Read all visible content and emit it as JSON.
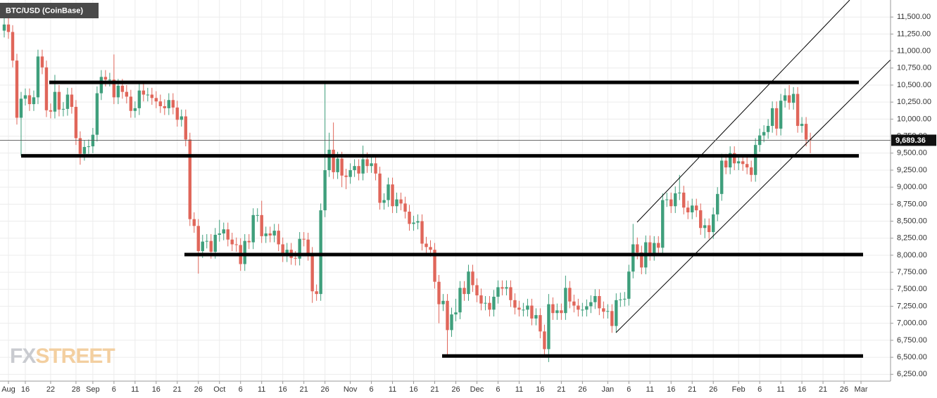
{
  "chart_data": {
    "type": "candlestick",
    "title": "BTC/USD (CoinBase)",
    "open": [
      11300,
      11390,
      11280,
      10860,
      10020,
      10300,
      10350,
      10220,
      10320,
      10920,
      10760,
      10130,
      10110,
      10400,
      10140,
      10150,
      10360,
      10180,
      9720,
      9490,
      9590,
      9600,
      9770,
      10380,
      10620,
      10580,
      10580,
      10320,
      10490,
      10400,
      10330,
      10120,
      10160,
      10420,
      10360,
      10360,
      10310,
      10260,
      10190,
      10160,
      10280,
      10170,
      9990,
      10040,
      9700,
      8530,
      8430,
      8060,
      8200,
      8210,
      8050,
      8300,
      8320,
      8380,
      8230,
      8160,
      8150,
      7870,
      8210,
      8190,
      8590,
      8590,
      8280,
      8320,
      8290,
      8360,
      8160,
      8000,
      8080,
      7960,
      7950,
      8240,
      8230,
      8020,
      7470,
      7430,
      8660,
      9250,
      9550,
      9220,
      9420,
      9170,
      9150,
      9250,
      9310,
      9200,
      9410,
      9310,
      9350,
      9200,
      8770,
      8810,
      9040,
      8720,
      8820,
      8760,
      8640,
      8460,
      8480,
      8500,
      8170,
      8120,
      8080,
      7610,
      7280,
      7330,
      6900,
      7130,
      7160,
      7520,
      7430,
      7760,
      7560,
      7410,
      7290,
      7300,
      7200,
      7390,
      7530,
      7510,
      7530,
      7340,
      7230,
      7200,
      7200,
      7260,
      7070,
      7120,
      6880,
      6620,
      7280,
      7150,
      7190,
      7150,
      7520,
      7320,
      7260,
      7200,
      7200,
      7250,
      7310,
      7400,
      7220,
      7170,
      7180,
      6960,
      7340,
      7350,
      7360,
      7760,
      8160,
      8040,
      7820,
      8190,
      8020,
      8180,
      8110,
      8810,
      8820,
      8720,
      8910,
      8920,
      8700,
      8630,
      8730,
      8660,
      8400,
      8440,
      8340,
      8600,
      8900,
      9390,
      9290,
      9500,
      9350,
      9380,
      9340,
      9290,
      9180,
      9620,
      9760,
      9810,
      9900,
      10160,
      9860,
      10270,
      10350,
      10240,
      10370,
      9900,
      9930,
      9700
    ],
    "high": [
      11600,
      11490,
      11380,
      10960,
      10400,
      10450,
      10450,
      10420,
      11020,
      11020,
      10860,
      10230,
      10650,
      10500,
      10250,
      10460,
      10460,
      10280,
      9820,
      9690,
      9700,
      9870,
      10480,
      10720,
      10720,
      10680,
      10950,
      10590,
      10590,
      10500,
      10430,
      10260,
      10520,
      10520,
      10460,
      10460,
      10410,
      10360,
      10290,
      10380,
      10380,
      10270,
      10140,
      10140,
      9800,
      8630,
      8530,
      8300,
      8310,
      8310,
      8400,
      8520,
      8480,
      8480,
      8330,
      8260,
      8250,
      8310,
      8310,
      8690,
      8690,
      8800,
      8420,
      8420,
      8460,
      8460,
      8260,
      8180,
      8180,
      8060,
      8340,
      8340,
      8330,
      8120,
      7570,
      8760,
      10540,
      9800,
      9950,
      9520,
      9520,
      9270,
      9350,
      9410,
      9410,
      9610,
      9510,
      9450,
      9450,
      9300,
      8910,
      9140,
      9140,
      8920,
      8920,
      8860,
      8740,
      8580,
      8600,
      8600,
      8270,
      8220,
      8180,
      7710,
      7430,
      7430,
      7230,
      7360,
      7620,
      7620,
      7860,
      7860,
      7660,
      7510,
      7400,
      7400,
      7490,
      7630,
      7630,
      7630,
      7630,
      7440,
      7330,
      7300,
      7360,
      7360,
      7220,
      7220,
      6980,
      7430,
      7380,
      7290,
      7290,
      7700,
      7620,
      7420,
      7360,
      7300,
      7350,
      7410,
      7500,
      7500,
      7320,
      7280,
      7280,
      7440,
      7450,
      7460,
      7860,
      8460,
      8260,
      8140,
      8290,
      8290,
      8280,
      8280,
      8910,
      8920,
      8920,
      9010,
      9180,
      9020,
      8800,
      8830,
      8830,
      8760,
      8540,
      8540,
      8700,
      9000,
      9490,
      9490,
      9600,
      9600,
      9480,
      9480,
      9440,
      9390,
      9720,
      9860,
      9910,
      10000,
      10260,
      10260,
      10370,
      10450,
      10500,
      10470,
      10470,
      10030,
      10030,
      9800
    ],
    "low": [
      11200,
      11180,
      10760,
      9920,
      9460,
      10200,
      10120,
      10120,
      10220,
      10660,
      10030,
      10010,
      10010,
      10040,
      10040,
      10050,
      10080,
      9620,
      9330,
      9390,
      9490,
      9500,
      9670,
      10280,
      10480,
      10480,
      10220,
      10220,
      10300,
      10230,
      10020,
      10020,
      10060,
      10260,
      10260,
      10210,
      10160,
      10090,
      10060,
      10060,
      10070,
      9890,
      9890,
      9600,
      8430,
      8330,
      7730,
      7960,
      8100,
      7950,
      7950,
      8200,
      8220,
      8130,
      8060,
      8050,
      7770,
      7770,
      8090,
      8090,
      8490,
      8180,
      8180,
      8190,
      8190,
      8060,
      7900,
      7900,
      7860,
      7850,
      7850,
      8130,
      7920,
      7300,
      7330,
      7330,
      8560,
      9150,
      9120,
      9120,
      9000,
      8970,
      9050,
      9150,
      9100,
      9100,
      9210,
      9210,
      9100,
      8670,
      8670,
      8710,
      8620,
      8620,
      8660,
      8540,
      8360,
      8360,
      8380,
      8070,
      8020,
      7980,
      7510,
      7000,
      7180,
      6520,
      6800,
      7030,
      7060,
      7330,
      7330,
      7460,
      7310,
      7190,
      7190,
      7100,
      7100,
      7290,
      7410,
      7410,
      7240,
      7130,
      7100,
      7100,
      7100,
      6970,
      6970,
      6780,
      6520,
      6430,
      7050,
      7050,
      7050,
      7050,
      7220,
      7160,
      7100,
      7100,
      7100,
      7150,
      7210,
      7120,
      7070,
      7070,
      6860,
      6860,
      7240,
      7250,
      7260,
      7660,
      7940,
      7720,
      7720,
      7920,
      7920,
      8010,
      8010,
      8710,
      8620,
      8620,
      8810,
      8600,
      8530,
      8530,
      8560,
      8300,
      8250,
      8240,
      8240,
      8500,
      8800,
      9190,
      9190,
      9250,
      9250,
      9240,
      9190,
      9080,
      9080,
      9520,
      9660,
      9710,
      9800,
      9760,
      9760,
      10170,
      10140,
      10140,
      9800,
      9800,
      9600,
      9500
    ],
    "close": [
      11390,
      11280,
      10860,
      10020,
      10300,
      10350,
      10220,
      10320,
      10920,
      10760,
      10130,
      10110,
      10400,
      10140,
      10150,
      10360,
      10180,
      9720,
      9490,
      9590,
      9600,
      9770,
      10380,
      10620,
      10580,
      10580,
      10320,
      10490,
      10400,
      10330,
      10120,
      10160,
      10420,
      10360,
      10360,
      10310,
      10260,
      10190,
      10160,
      10280,
      10170,
      9990,
      10040,
      9700,
      8530,
      8430,
      8060,
      8200,
      8210,
      8050,
      8300,
      8320,
      8380,
      8230,
      8160,
      8150,
      7870,
      8210,
      8190,
      8590,
      8590,
      8280,
      8320,
      8290,
      8360,
      8160,
      8000,
      8080,
      7960,
      7950,
      8240,
      8230,
      8020,
      7470,
      7430,
      8660,
      9250,
      9550,
      9220,
      9420,
      9170,
      9150,
      9250,
      9310,
      9200,
      9410,
      9310,
      9350,
      9200,
      8770,
      8810,
      9040,
      8720,
      8820,
      8760,
      8640,
      8460,
      8480,
      8500,
      8170,
      8120,
      8080,
      7610,
      7280,
      7330,
      6900,
      7130,
      7160,
      7520,
      7430,
      7760,
      7560,
      7410,
      7290,
      7300,
      7200,
      7390,
      7530,
      7510,
      7530,
      7340,
      7230,
      7200,
      7200,
      7260,
      7070,
      7120,
      6880,
      6620,
      7280,
      7150,
      7190,
      7150,
      7520,
      7320,
      7260,
      7200,
      7200,
      7250,
      7310,
      7400,
      7220,
      7170,
      7180,
      6960,
      7340,
      7350,
      7360,
      7760,
      8160,
      8040,
      7820,
      8190,
      8020,
      8180,
      8110,
      8810,
      8820,
      8720,
      8910,
      8920,
      8700,
      8630,
      8730,
      8660,
      8400,
      8440,
      8340,
      8600,
      8900,
      9390,
      9290,
      9500,
      9350,
      9380,
      9340,
      9290,
      9180,
      9620,
      9760,
      9810,
      9900,
      10160,
      9860,
      10270,
      10350,
      10240,
      10370,
      9900,
      9930,
      9700,
      9690
    ],
    "up_color": "#3f9f7c",
    "down_color": "#e0665a",
    "xlim": [
      -1,
      210
    ],
    "xticks": [
      {
        "value": 1,
        "label": "Aug"
      },
      {
        "value": 5,
        "label": "16"
      },
      {
        "value": 11,
        "label": "22"
      },
      {
        "value": 17,
        "label": "28"
      },
      {
        "value": 21,
        "label": "Sep"
      },
      {
        "value": 26,
        "label": "6"
      },
      {
        "value": 31,
        "label": "11"
      },
      {
        "value": 36,
        "label": "16"
      },
      {
        "value": 41,
        "label": "21"
      },
      {
        "value": 46,
        "label": "26"
      },
      {
        "value": 51,
        "label": "Oct"
      },
      {
        "value": 56,
        "label": "6"
      },
      {
        "value": 61,
        "label": "11"
      },
      {
        "value": 66,
        "label": "16"
      },
      {
        "value": 71,
        "label": "21"
      },
      {
        "value": 76,
        "label": "26"
      },
      {
        "value": 82,
        "label": "Nov"
      },
      {
        "value": 87,
        "label": "6"
      },
      {
        "value": 92,
        "label": "11"
      },
      {
        "value": 97,
        "label": "16"
      },
      {
        "value": 102,
        "label": "21"
      },
      {
        "value": 107,
        "label": "26"
      },
      {
        "value": 112,
        "label": "Dec"
      },
      {
        "value": 117,
        "label": "6"
      },
      {
        "value": 122,
        "label": "11"
      },
      {
        "value": 127,
        "label": "16"
      },
      {
        "value": 132,
        "label": "21"
      },
      {
        "value": 137,
        "label": "26"
      },
      {
        "value": 143,
        "label": "Jan"
      },
      {
        "value": 148,
        "label": "6"
      },
      {
        "value": 153,
        "label": "11"
      },
      {
        "value": 158,
        "label": "16"
      },
      {
        "value": 163,
        "label": "21"
      },
      {
        "value": 168,
        "label": "26"
      },
      {
        "value": 174,
        "label": "Feb"
      },
      {
        "value": 179,
        "label": "6"
      },
      {
        "value": 184,
        "label": "11"
      },
      {
        "value": 189,
        "label": "16"
      },
      {
        "value": 194,
        "label": "21"
      },
      {
        "value": 199,
        "label": "26"
      },
      {
        "value": 203,
        "label": "Mar"
      }
    ],
    "ylim": [
      6150,
      11750
    ],
    "yticks": [
      {
        "value": 6250,
        "label": "6,250.00"
      },
      {
        "value": 6500,
        "label": "6,500.00"
      },
      {
        "value": 6750,
        "label": "6,750.00"
      },
      {
        "value": 7000,
        "label": "7,000.00"
      },
      {
        "value": 7250,
        "label": "7,250.00"
      },
      {
        "value": 7500,
        "label": "7,500.00"
      },
      {
        "value": 7750,
        "label": "7,750.00"
      },
      {
        "value": 8000,
        "label": "8,000.00"
      },
      {
        "value": 8250,
        "label": "8,250.00"
      },
      {
        "value": 8500,
        "label": "8,500.00"
      },
      {
        "value": 8750,
        "label": "8,750.00"
      },
      {
        "value": 9000,
        "label": "9,000.00"
      },
      {
        "value": 9250,
        "label": "9,250.00"
      },
      {
        "value": 9500,
        "label": "9,500.00"
      },
      {
        "value": 9750,
        "label": "9,750.00"
      },
      {
        "value": 10000,
        "label": "10,000.00"
      },
      {
        "value": 10250,
        "label": "10,250.00"
      },
      {
        "value": 10500,
        "label": "10,500.00"
      },
      {
        "value": 10750,
        "label": "10,750.00"
      },
      {
        "value": 11000,
        "label": "11,000.00"
      },
      {
        "value": 11250,
        "label": "11,250.00"
      },
      {
        "value": 11500,
        "label": "11,500.00"
      }
    ],
    "grid": true,
    "levels": [
      10540,
      9460,
      8010,
      6520
    ],
    "last_price": {
      "value": 9689.36,
      "label": "9,689.36"
    },
    "watermark": [
      "FX",
      "STREET"
    ]
  }
}
